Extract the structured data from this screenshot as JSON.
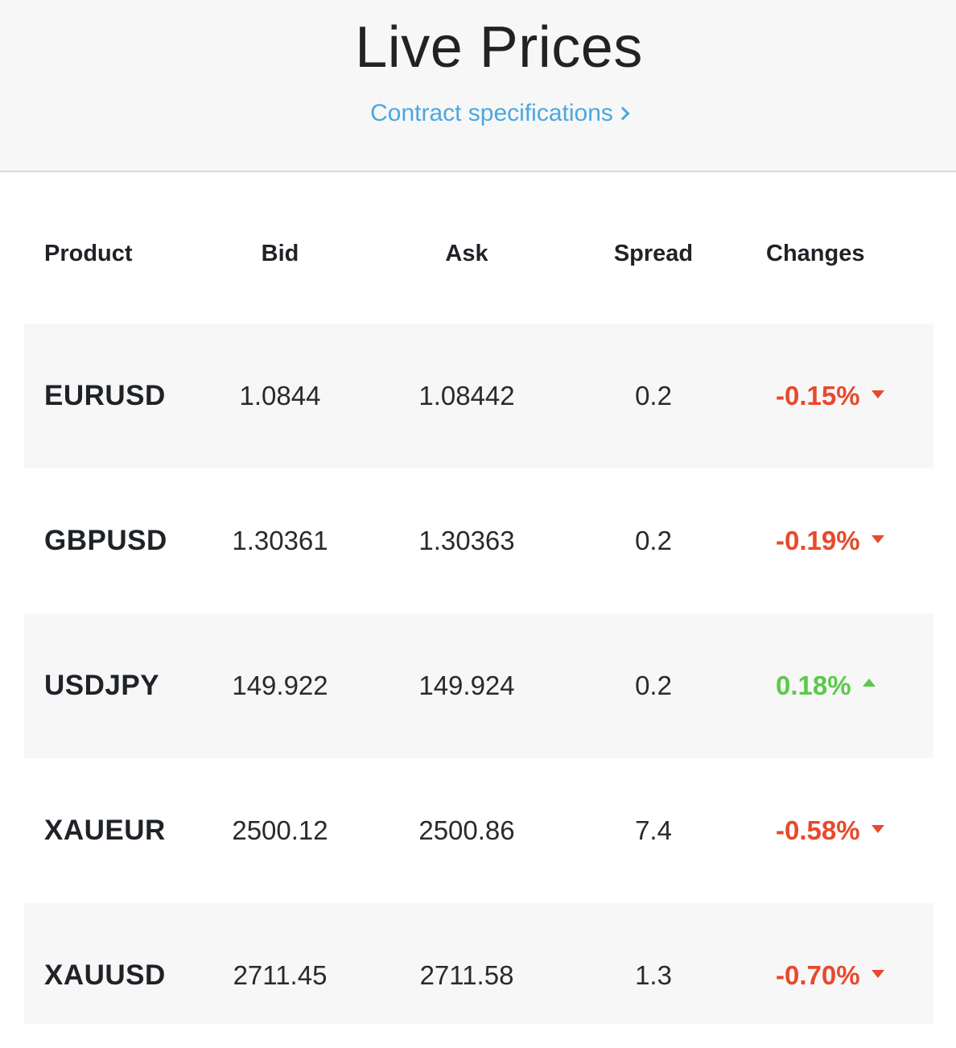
{
  "header": {
    "title": "Live Prices",
    "spec_link": "Contract specifications",
    "spec_link_icon": "chevron-right-icon"
  },
  "table": {
    "columns": [
      "Product",
      "Bid",
      "Ask",
      "Spread",
      "Changes"
    ],
    "rows": [
      {
        "product": "EURUSD",
        "bid": "1.0844",
        "ask": "1.08442",
        "spread": "0.2",
        "change": "-0.15%",
        "direction": "down"
      },
      {
        "product": "GBPUSD",
        "bid": "1.30361",
        "ask": "1.30363",
        "spread": "0.2",
        "change": "-0.19%",
        "direction": "down"
      },
      {
        "product": "USDJPY",
        "bid": "149.922",
        "ask": "149.924",
        "spread": "0.2",
        "change": "0.18%",
        "direction": "up"
      },
      {
        "product": "XAUEUR",
        "bid": "2500.12",
        "ask": "2500.86",
        "spread": "7.4",
        "change": "-0.58%",
        "direction": "down"
      },
      {
        "product": "XAUUSD",
        "bid": "2711.45",
        "ask": "2711.58",
        "spread": "1.3",
        "change": "-0.70%",
        "direction": "down"
      }
    ]
  },
  "colors": {
    "down": "#e8492c",
    "up": "#5cc94a",
    "link": "#4aa8e0",
    "row_shade": "#f7f7f7"
  }
}
